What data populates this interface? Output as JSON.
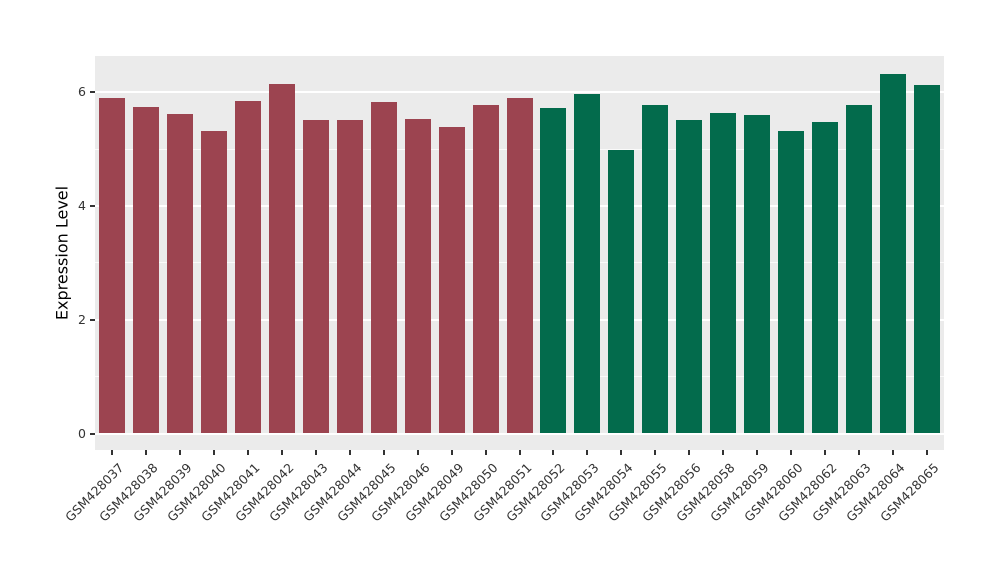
{
  "chart_data": {
    "type": "bar",
    "title": "",
    "xlabel": "",
    "ylabel": "Expression Level",
    "ylim": [
      0,
      6.6
    ],
    "yticks": [
      "0",
      "2",
      "4",
      "6"
    ],
    "ytick_values": [
      0,
      2,
      4,
      6
    ],
    "minor_gridline_values": [
      1,
      3,
      5
    ],
    "grid": "on",
    "legend_position": "none",
    "panel_background": "#EBEBEB",
    "grid_color": "#FFFFFF",
    "axis_text_color": "#333333",
    "group_colors": {
      "group1": "#9C4450",
      "group2": "#036B4C"
    },
    "categories": [
      "GSM428037",
      "GSM428038",
      "GSM428039",
      "GSM428040",
      "GSM428041",
      "GSM428042",
      "GSM428043",
      "GSM428044",
      "GSM428045",
      "GSM428046",
      "GSM428049",
      "GSM428050",
      "GSM428051",
      "GSM428052",
      "GSM428053",
      "GSM428054",
      "GSM428055",
      "GSM428056",
      "GSM428058",
      "GSM428059",
      "GSM428060",
      "GSM428062",
      "GSM428063",
      "GSM428064",
      "GSM428065"
    ],
    "values": [
      5.9,
      5.74,
      5.61,
      5.32,
      5.84,
      6.15,
      5.51,
      5.51,
      5.82,
      5.53,
      5.38,
      5.77,
      5.9,
      5.72,
      5.97,
      4.98,
      5.77,
      5.51,
      5.64,
      5.59,
      5.32,
      5.48,
      5.78,
      6.31,
      6.13
    ],
    "bar_colors": [
      "#9C4450",
      "#9C4450",
      "#9C4450",
      "#9C4450",
      "#9C4450",
      "#9C4450",
      "#9C4450",
      "#9C4450",
      "#9C4450",
      "#9C4450",
      "#9C4450",
      "#9C4450",
      "#9C4450",
      "#036B4C",
      "#036B4C",
      "#036B4C",
      "#036B4C",
      "#036B4C",
      "#036B4C",
      "#036B4C",
      "#036B4C",
      "#036B4C",
      "#036B4C",
      "#036B4C",
      "#036B4C"
    ]
  }
}
